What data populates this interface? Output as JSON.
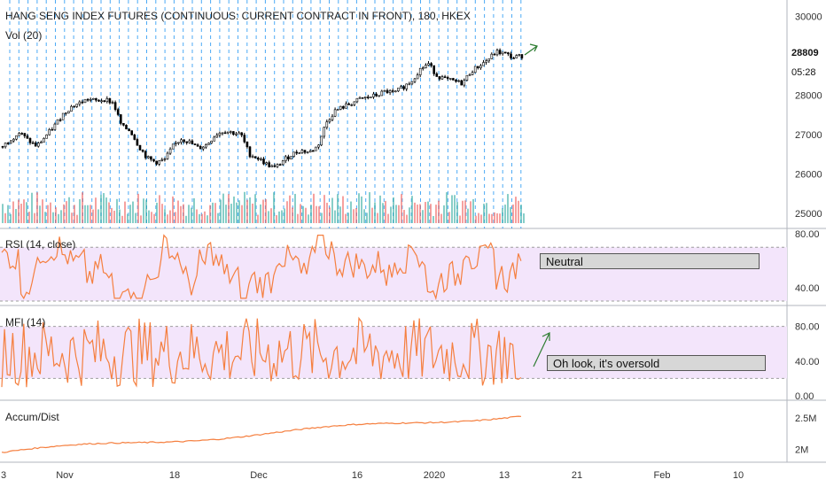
{
  "chart_data": {
    "title": "HANG SENG INDEX FUTURES (CONTINUOUS: CURRENT CONTRACT IN FRONT), 180, HKEX",
    "panes": [
      {
        "name": "price",
        "type": "candlestick",
        "ylim": [
          24800,
          30300
        ],
        "yticks": [
          "30000",
          "28000",
          "27000",
          "26000",
          "25000"
        ],
        "last_price": "28809",
        "countdown": "05:28",
        "volume_label": "Vol (20)",
        "close_approx": [
          26700,
          26900,
          27050,
          26850,
          26700,
          26950,
          27200,
          27500,
          27700,
          27800,
          27900,
          27850,
          27900,
          27800,
          27200,
          27100,
          26700,
          26400,
          26300,
          26350,
          26700,
          26900,
          26800,
          26650,
          26750,
          27000,
          27100,
          27050,
          27000,
          26500,
          26400,
          26250,
          26150,
          26350,
          26500,
          26600,
          26550,
          26700,
          27300,
          27600,
          27700,
          27800,
          27900,
          27950,
          28000,
          28100,
          28050,
          28200,
          28350,
          28650,
          28800,
          28500,
          28400,
          28350,
          28300,
          28600,
          28750,
          28900,
          29100,
          29050,
          28950,
          29000
        ]
      },
      {
        "name": "rsi",
        "label": "RSI (14, close)",
        "ylim": [
          28,
          82
        ],
        "yticks": [
          "80.00",
          "40.00"
        ],
        "band": [
          30,
          70
        ],
        "annotation": "Neutral"
      },
      {
        "name": "mfi",
        "label": "MFI (14)",
        "ylim": [
          -2,
          100
        ],
        "yticks": [
          "80.00",
          "40.00",
          "0.00"
        ],
        "band": [
          20,
          80
        ],
        "annotation": "Oh look, it's oversold"
      },
      {
        "name": "accum_dist",
        "label": "Accum/Dist",
        "yticks": [
          "2.5M",
          "2M"
        ]
      }
    ],
    "x_ticks": [
      "3",
      "Nov",
      "18",
      "Dec",
      "16",
      "2020",
      "13",
      "21",
      "Feb",
      "10"
    ],
    "colors": {
      "up": "#26a69a",
      "down": "#ef5350",
      "candle": "#000000",
      "indicator_line": "#f57f3f",
      "band_fill": "#f3e5fb",
      "dashed_vline": "#2196f3",
      "arrow": "#2e7d32"
    }
  }
}
